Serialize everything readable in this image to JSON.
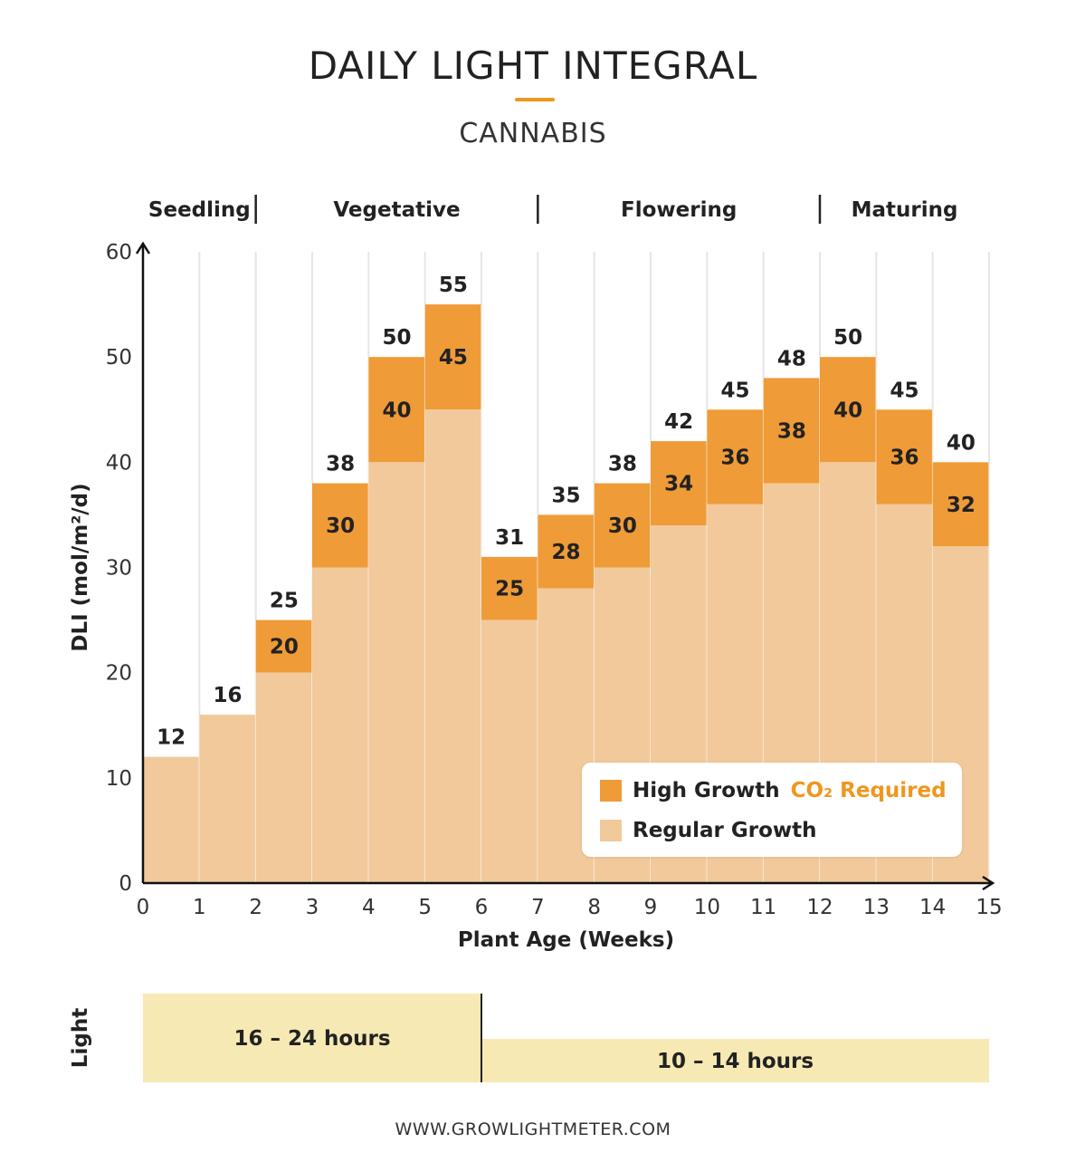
{
  "title": "DAILY LIGHT INTEGRAL",
  "subtitle": "CANNABIS",
  "footer": "WWW.GROWLIGHTMETER.COM",
  "colors": {
    "high": "#ef9b38",
    "regular": "#f1c99b",
    "accent": "#f0961e",
    "light_band": "#f6e9b3"
  },
  "chart_data": {
    "type": "bar",
    "xlabel": "Plant Age (Weeks)",
    "ylabel": "DLI (mol/m²/d)",
    "ylim": [
      0,
      60
    ],
    "xlim": [
      0,
      15
    ],
    "yticks": [
      0,
      10,
      20,
      30,
      40,
      50,
      60
    ],
    "xticks": [
      0,
      1,
      2,
      3,
      4,
      5,
      6,
      7,
      8,
      9,
      10,
      11,
      12,
      13,
      14,
      15
    ],
    "stages": [
      {
        "name": "Seedling",
        "start": 0,
        "end": 2
      },
      {
        "name": "Vegetative",
        "start": 2,
        "end": 7
      },
      {
        "name": "Flowering",
        "start": 7,
        "end": 12
      },
      {
        "name": "Maturing",
        "start": 12,
        "end": 15
      }
    ],
    "series": [
      {
        "name": "Regular Growth",
        "values": [
          12,
          16,
          20,
          30,
          40,
          45,
          25,
          28,
          30,
          34,
          36,
          38,
          40,
          36,
          32
        ]
      },
      {
        "name": "High Growth",
        "values": [
          12,
          16,
          25,
          38,
          50,
          55,
          31,
          35,
          38,
          42,
          45,
          48,
          50,
          45,
          40
        ]
      }
    ],
    "legend": {
      "high_label": "High Growth",
      "co2_label": "CO₂ Required",
      "regular_label": "Regular Growth",
      "position": "bottom-right"
    },
    "light": {
      "label": "Light",
      "periods": [
        {
          "text": "16 – 24 hours",
          "start": 0,
          "end": 6
        },
        {
          "text": "10 – 14 hours",
          "start": 6,
          "end": 15
        }
      ]
    }
  }
}
